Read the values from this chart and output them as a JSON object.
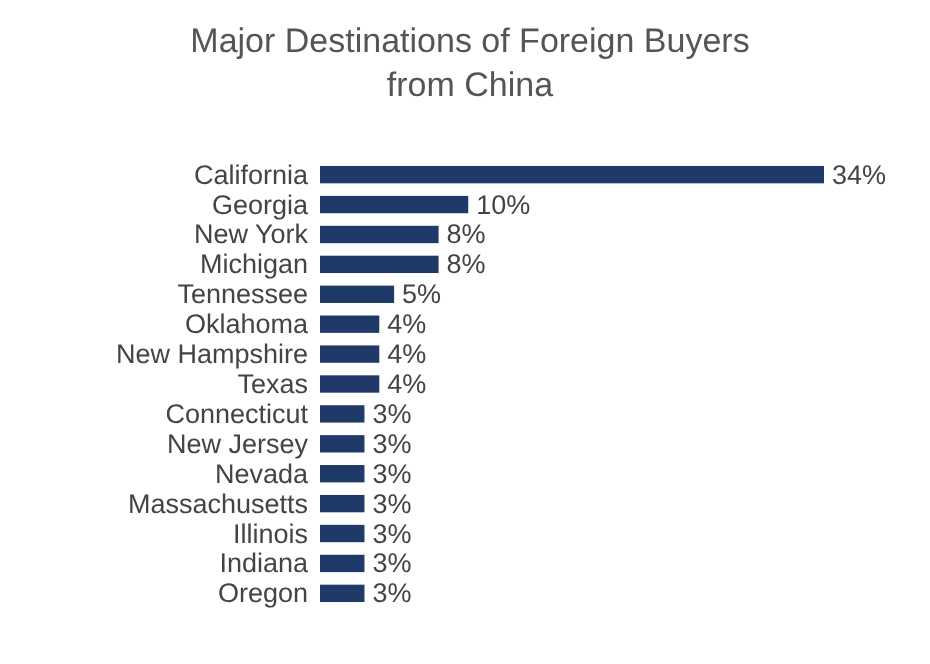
{
  "chart_data": {
    "type": "bar",
    "orientation": "horizontal",
    "title": "Major Destinations of Foreign Buyers from China",
    "categories": [
      "California",
      "Georgia",
      "New York",
      "Michigan",
      "Tennessee",
      "Oklahoma",
      "New Hampshire",
      "Texas",
      "Connecticut",
      "New Jersey",
      "Nevada",
      "Massachusetts",
      "Illinois",
      "Indiana",
      "Oregon"
    ],
    "values": [
      34,
      10,
      8,
      8,
      5,
      4,
      4,
      4,
      3,
      3,
      3,
      3,
      3,
      3,
      3
    ],
    "value_labels": [
      "34%",
      "10%",
      "8%",
      "8%",
      "5%",
      "4%",
      "4%",
      "4%",
      "3%",
      "3%",
      "3%",
      "3%",
      "3%",
      "3%",
      "3%"
    ],
    "color": "#1f3a68"
  }
}
